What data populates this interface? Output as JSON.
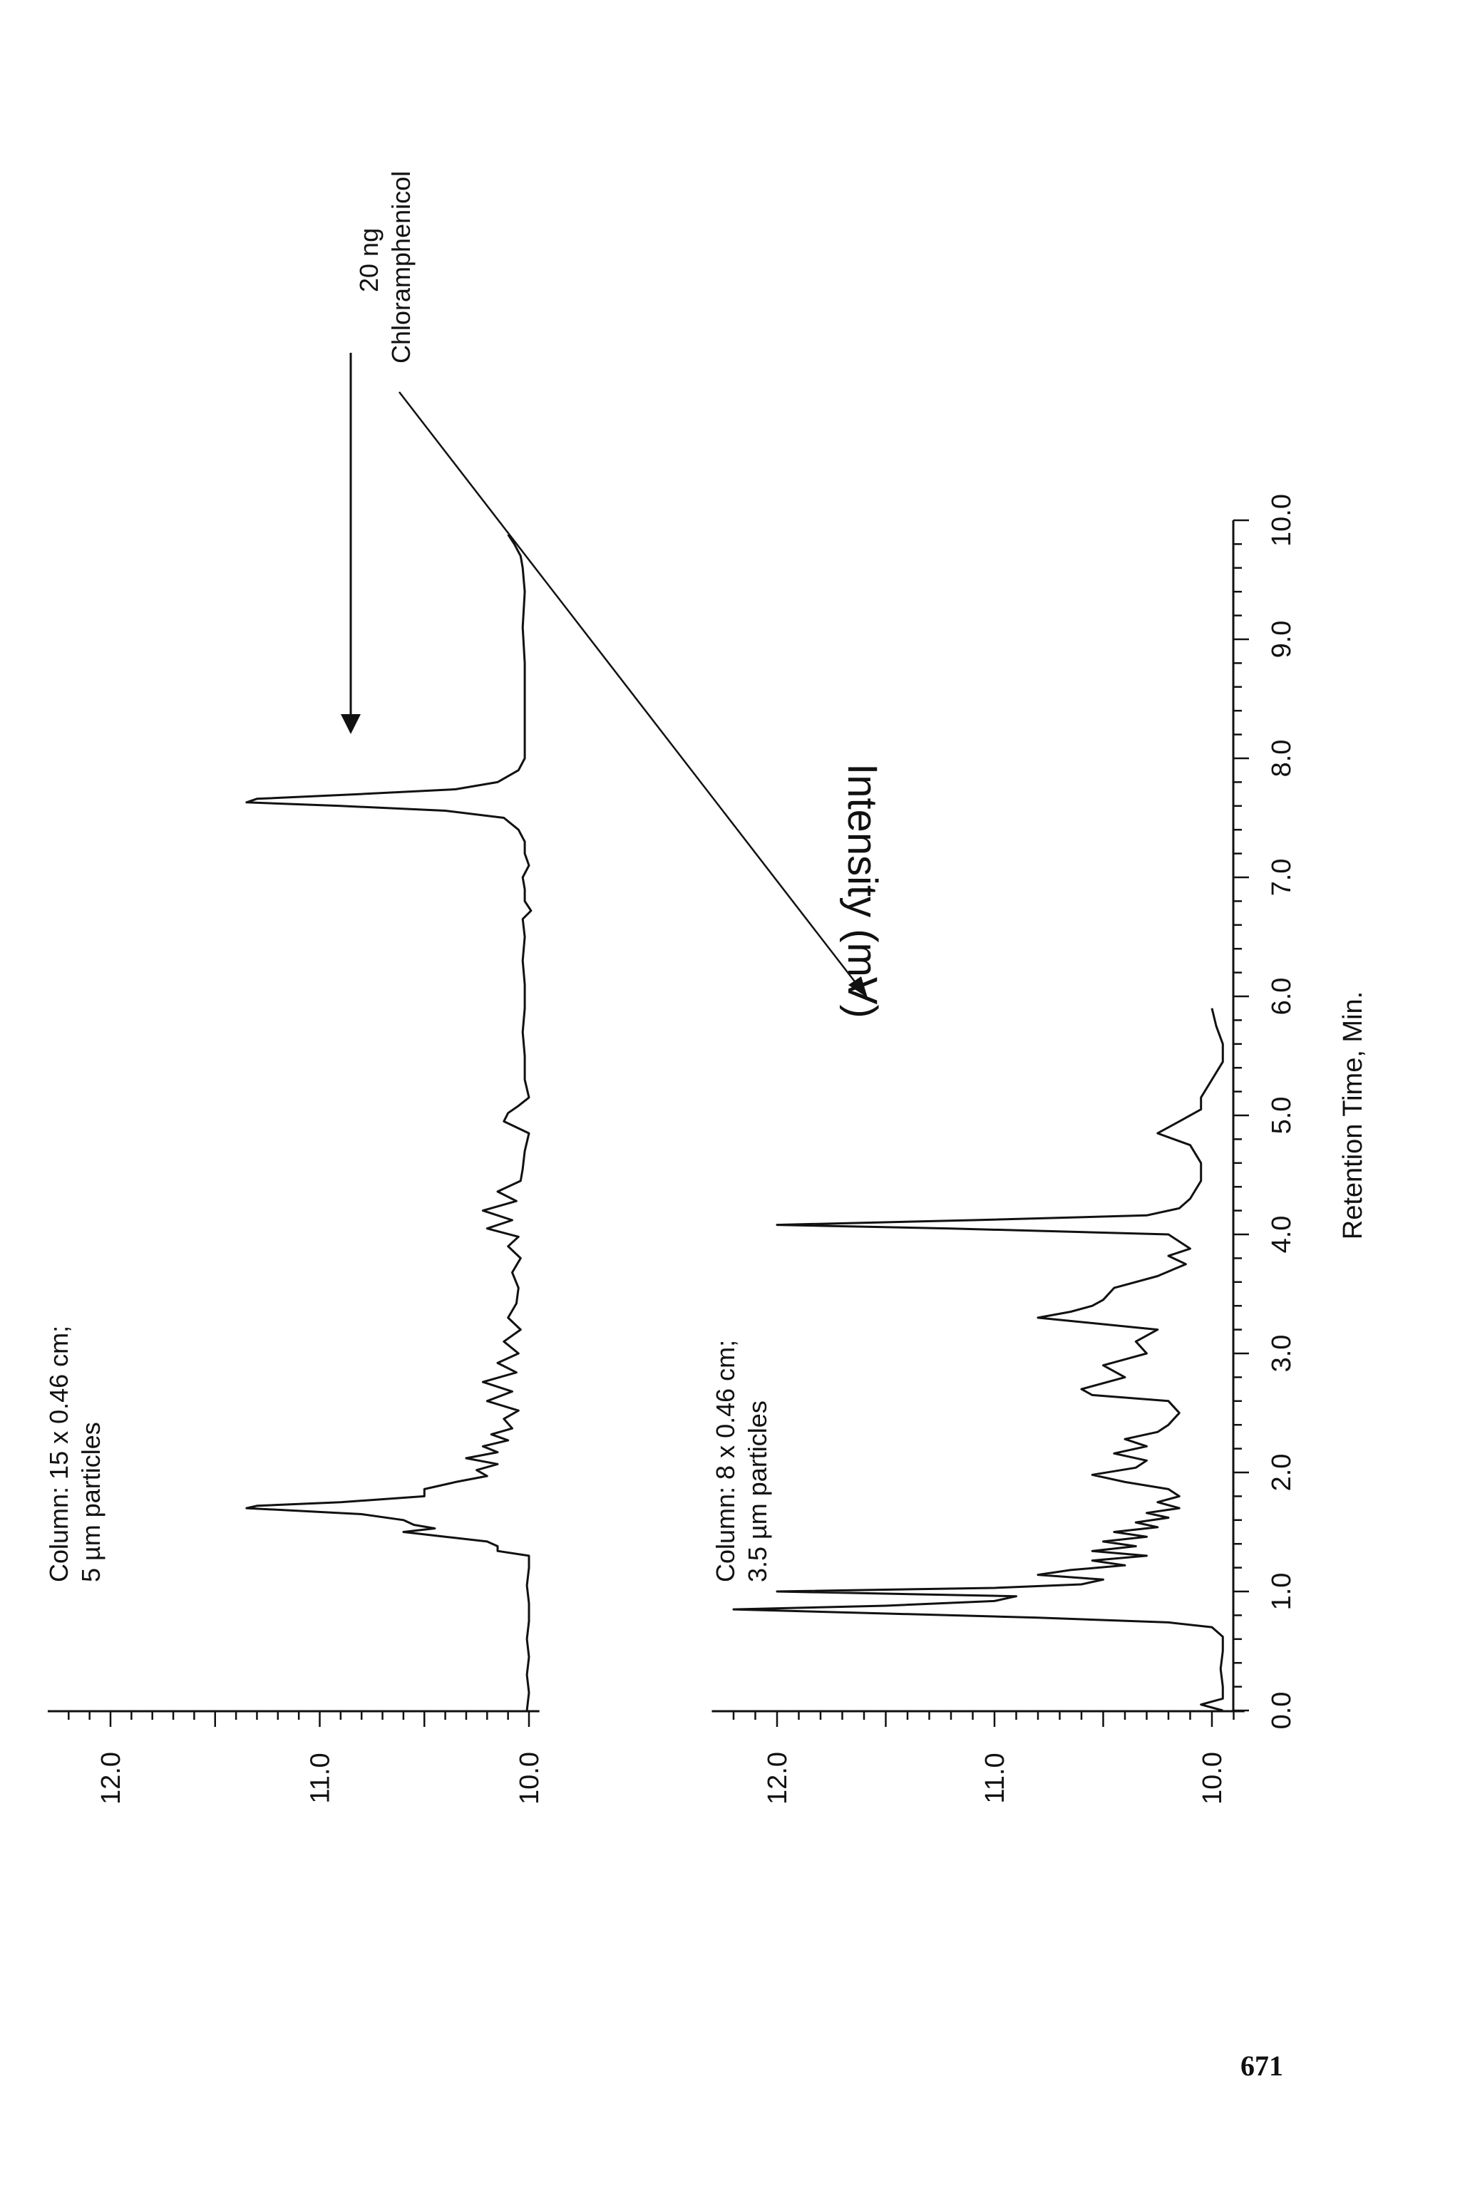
{
  "page_number": "671",
  "chart_data": {
    "type": "line",
    "xlabel": "Retention Time, Min.",
    "ylabel": "Intensity (mV)",
    "xlim": [
      0.0,
      10.0
    ],
    "x_ticks": [
      "0.0",
      "1.0",
      "2.0",
      "3.0",
      "4.0",
      "5.0",
      "6.0",
      "7.0",
      "8.0",
      "9.0",
      "10.0"
    ],
    "grid": false,
    "annotation": {
      "text": [
        "20 ng",
        "Chloramphenicol"
      ]
    },
    "panels": [
      {
        "label": [
          "Column: 15 x 0.46 cm;",
          "5 µm particles"
        ],
        "ylim": [
          9.95,
          12.3
        ],
        "y_ticks": [
          "10.0",
          "11.0",
          "12.0"
        ],
        "series": {
          "x": [
            0.0,
            0.15,
            0.3,
            0.45,
            0.6,
            0.75,
            0.9,
            1.05,
            1.2,
            1.3,
            1.34,
            1.38,
            1.42,
            1.46,
            1.5,
            1.53,
            1.56,
            1.6,
            1.65,
            1.7,
            1.72,
            1.75,
            1.8,
            1.86,
            1.92,
            1.97,
            2.02,
            2.07,
            2.12,
            2.17,
            2.22,
            2.27,
            2.32,
            2.37,
            2.45,
            2.52,
            2.6,
            2.68,
            2.76,
            2.84,
            2.92,
            3.0,
            3.1,
            3.2,
            3.3,
            3.42,
            3.55,
            3.68,
            3.8,
            3.9,
            3.98,
            4.05,
            4.12,
            4.2,
            4.28,
            4.36,
            4.45,
            4.55,
            4.7,
            4.85,
            4.95,
            5.02,
            5.08,
            5.15,
            5.3,
            5.5,
            5.7,
            5.9,
            6.1,
            6.3,
            6.5,
            6.65,
            6.72,
            6.8,
            6.9,
            7.0,
            7.1,
            7.2,
            7.3,
            7.4,
            7.5,
            7.56,
            7.6,
            7.63,
            7.66,
            7.7,
            7.74,
            7.8,
            7.9,
            8.0,
            8.2,
            8.5,
            8.8,
            9.1,
            9.4,
            9.6,
            9.7,
            9.8,
            9.88
          ],
          "y": [
            10.01,
            10.0,
            10.01,
            10.0,
            10.01,
            10.0,
            10.0,
            10.01,
            10.0,
            10.0,
            10.15,
            10.15,
            10.2,
            10.4,
            10.6,
            10.45,
            10.55,
            10.6,
            10.8,
            11.35,
            11.3,
            10.9,
            10.5,
            10.5,
            10.35,
            10.2,
            10.25,
            10.15,
            10.3,
            10.15,
            10.22,
            10.1,
            10.18,
            10.08,
            10.12,
            10.05,
            10.2,
            10.08,
            10.22,
            10.06,
            10.15,
            10.05,
            10.12,
            10.04,
            10.1,
            10.06,
            10.05,
            10.08,
            10.04,
            10.1,
            10.05,
            10.2,
            10.08,
            10.22,
            10.06,
            10.15,
            10.04,
            10.03,
            10.02,
            10.0,
            10.12,
            10.1,
            10.05,
            10.0,
            10.02,
            10.02,
            10.03,
            10.02,
            10.02,
            10.03,
            10.02,
            10.03,
            9.99,
            10.02,
            10.02,
            10.03,
            10.0,
            10.02,
            10.02,
            10.05,
            10.12,
            10.4,
            10.9,
            11.35,
            11.3,
            10.8,
            10.35,
            10.15,
            10.05,
            10.02,
            10.02,
            10.02,
            10.02,
            10.03,
            10.02,
            10.03,
            10.04,
            10.07,
            10.1
          ]
        }
      },
      {
        "label": [
          "Column: 8 x 0.46 cm;",
          "3.5 µm particles"
        ],
        "ylim": [
          9.85,
          12.3
        ],
        "y_ticks": [
          "10.0",
          "11.0",
          "12.0"
        ],
        "series": {
          "x": [
            0.0,
            0.05,
            0.1,
            0.2,
            0.35,
            0.5,
            0.62,
            0.7,
            0.74,
            0.78,
            0.82,
            0.85,
            0.88,
            0.92,
            0.96,
            1.0,
            1.03,
            1.06,
            1.1,
            1.14,
            1.18,
            1.22,
            1.26,
            1.3,
            1.34,
            1.38,
            1.42,
            1.46,
            1.5,
            1.54,
            1.58,
            1.62,
            1.66,
            1.7,
            1.75,
            1.8,
            1.86,
            1.92,
            1.98,
            2.04,
            2.1,
            2.16,
            2.22,
            2.28,
            2.34,
            2.4,
            2.5,
            2.6,
            2.65,
            2.7,
            2.8,
            2.9,
            3.0,
            3.1,
            3.2,
            3.3,
            3.35,
            3.4,
            3.45,
            3.55,
            3.65,
            3.75,
            3.82,
            3.88,
            3.94,
            4.0,
            4.05,
            4.08,
            4.12,
            4.16,
            4.22,
            4.3,
            4.45,
            4.6,
            4.75,
            4.85,
            4.95,
            5.05,
            5.15,
            5.3,
            5.45,
            5.6,
            5.75,
            5.9
          ],
          "y": [
            9.95,
            10.05,
            9.95,
            9.95,
            9.96,
            9.95,
            9.95,
            10.0,
            10.2,
            10.8,
            11.6,
            12.2,
            11.5,
            11.0,
            10.9,
            12.0,
            11.0,
            10.6,
            10.5,
            10.8,
            10.65,
            10.4,
            10.55,
            10.3,
            10.55,
            10.35,
            10.5,
            10.3,
            10.45,
            10.25,
            10.35,
            10.2,
            10.3,
            10.15,
            10.25,
            10.15,
            10.2,
            10.4,
            10.55,
            10.35,
            10.3,
            10.45,
            10.3,
            10.4,
            10.25,
            10.2,
            10.15,
            10.2,
            10.55,
            10.6,
            10.4,
            10.5,
            10.3,
            10.35,
            10.25,
            10.8,
            10.65,
            10.55,
            10.5,
            10.45,
            10.25,
            10.12,
            10.2,
            10.1,
            10.15,
            10.2,
            11.2,
            12.0,
            11.1,
            10.3,
            10.15,
            10.1,
            10.05,
            10.05,
            10.1,
            10.25,
            10.15,
            10.05,
            10.05,
            10.0,
            9.95,
            9.95,
            9.98,
            10.0
          ]
        }
      }
    ]
  }
}
